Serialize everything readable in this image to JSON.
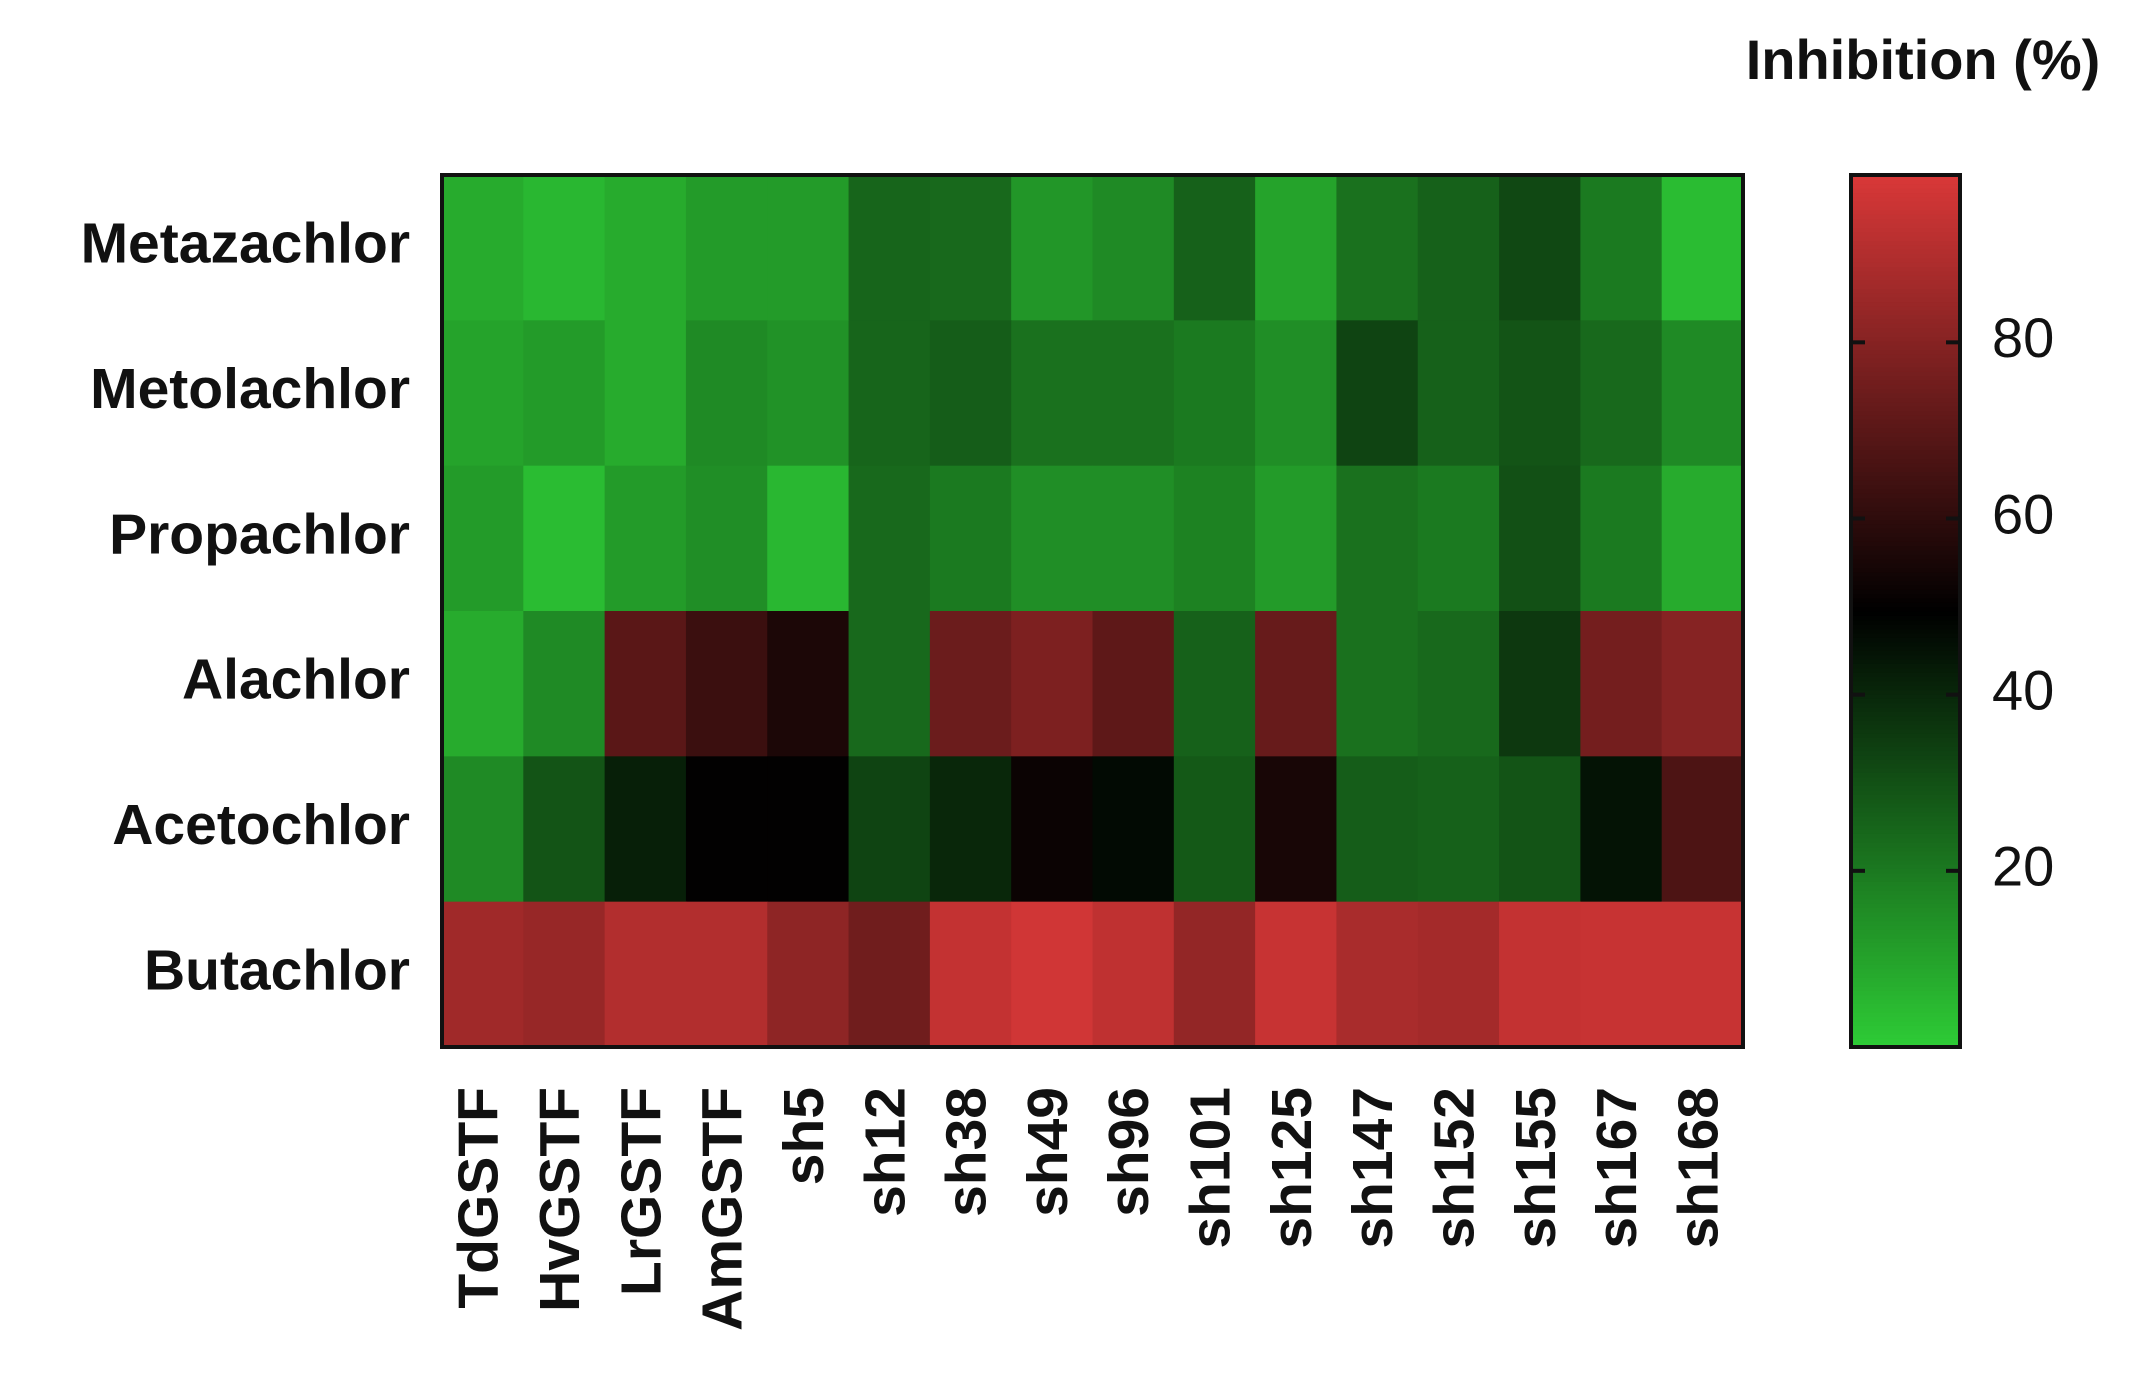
{
  "chart_data": {
    "type": "heatmap",
    "colorbar_title": "Inhibition (%)",
    "x_categories": [
      "TdGSTF",
      "HvGSTF",
      "LrGSTF",
      "AmGSTF",
      "sh5",
      "sh12",
      "sh38",
      "sh49",
      "sh96",
      "sh101",
      "sh125",
      "sh147",
      "sh152",
      "sh155",
      "sh167",
      "sh168"
    ],
    "y_categories": [
      "Metazachlor",
      "Metolachlor",
      "Propachlor",
      "Alachlor",
      "Acetochlor",
      "Butachlor"
    ],
    "values": [
      [
        8,
        5,
        8,
        12,
        12,
        25,
        24,
        13,
        16,
        26,
        10,
        22,
        26,
        32,
        20,
        4
      ],
      [
        10,
        12,
        8,
        16,
        14,
        25,
        27,
        22,
        22,
        20,
        15,
        33,
        26,
        29,
        24,
        16
      ],
      [
        12,
        4,
        12,
        15,
        5,
        24,
        20,
        15,
        15,
        18,
        12,
        22,
        20,
        30,
        20,
        8
      ],
      [
        8,
        16,
        70,
        63,
        56,
        24,
        74,
        78,
        71,
        26,
        73,
        22,
        24,
        36,
        76,
        80
      ],
      [
        16,
        29,
        42,
        50,
        50,
        33,
        40,
        52,
        47,
        28,
        55,
        27,
        26,
        29,
        45,
        67
      ],
      [
        86,
        84,
        90,
        90,
        82,
        75,
        94,
        97,
        93,
        83,
        95,
        88,
        87,
        94,
        95,
        95
      ]
    ],
    "colormap": [
      "#2ecc36",
      "#000000",
      "#d93838"
    ],
    "zlim": [
      0,
      99
    ],
    "zticks": [
      20,
      40,
      60,
      80
    ]
  }
}
